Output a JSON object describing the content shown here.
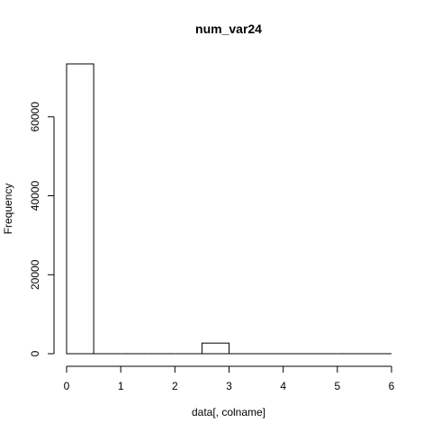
{
  "chart_data": {
    "type": "bar",
    "title": "num_var24",
    "xlabel": "data[, colname]",
    "ylabel": "Frequency",
    "bins": [
      {
        "from": 0.0,
        "to": 0.5,
        "count": 73400
      },
      {
        "from": 0.5,
        "to": 1.0,
        "count": 0
      },
      {
        "from": 1.0,
        "to": 1.5,
        "count": 0
      },
      {
        "from": 1.5,
        "to": 2.0,
        "count": 0
      },
      {
        "from": 2.0,
        "to": 2.5,
        "count": 0
      },
      {
        "from": 2.5,
        "to": 3.0,
        "count": 2700
      },
      {
        "from": 3.0,
        "to": 3.5,
        "count": 0
      },
      {
        "from": 3.5,
        "to": 4.0,
        "count": 0
      },
      {
        "from": 4.0,
        "to": 4.5,
        "count": 0
      },
      {
        "from": 4.5,
        "to": 5.0,
        "count": 0
      },
      {
        "from": 5.0,
        "to": 5.5,
        "count": 0
      },
      {
        "from": 5.5,
        "to": 6.0,
        "count": 0
      }
    ],
    "xlim": [
      0,
      6
    ],
    "ylim": [
      0,
      73400
    ],
    "x_ticks": [
      0,
      1,
      2,
      3,
      4,
      5,
      6
    ],
    "y_ticks": [
      0,
      20000,
      40000,
      60000
    ],
    "grid": false,
    "bar_fill": "#ffffff",
    "bar_stroke": "#000000"
  }
}
